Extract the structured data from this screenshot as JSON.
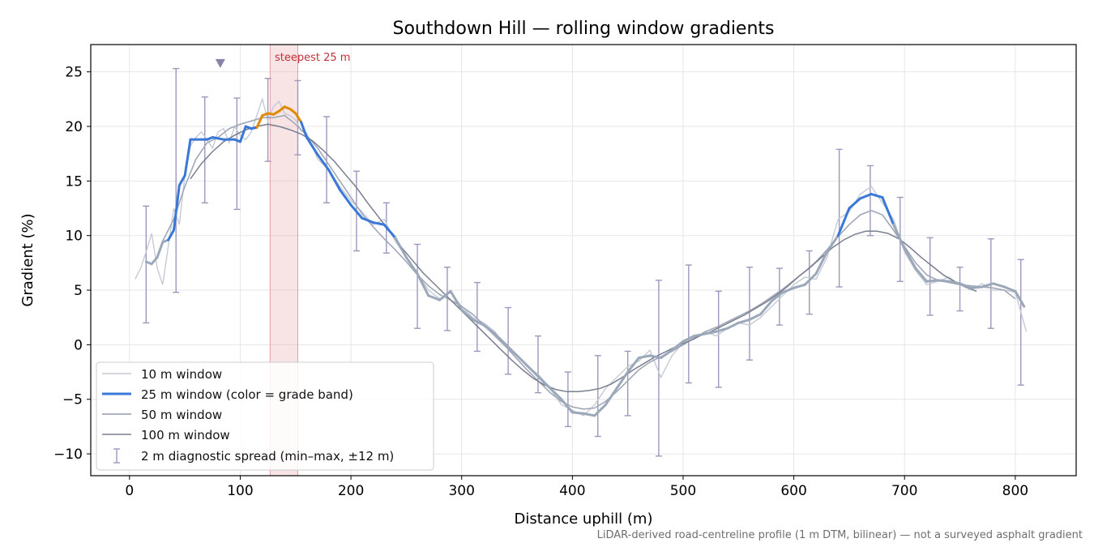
{
  "chart_data": {
    "type": "line",
    "title": "Southdown Hill — rolling window gradients",
    "xlabel": "Distance uphill (m)",
    "ylabel": "Gradient (%)",
    "xlim": [
      -35,
      855
    ],
    "ylim": [
      -12,
      27.5
    ],
    "xticks": [
      0,
      100,
      200,
      300,
      400,
      500,
      600,
      700,
      800
    ],
    "yticks": [
      -10,
      -5,
      0,
      5,
      10,
      15,
      20,
      25
    ],
    "grid": true,
    "legend_position": "lower-left",
    "footnote": "LiDAR-derived road-centreline profile (1 m DTM, bilinear) — not a surveyed asphalt gradient",
    "steepest_label": "steepest 25 m",
    "steepest_band": [
      127,
      152
    ],
    "peak_marker": {
      "x": 82,
      "y": 25.8
    },
    "grade_colors": {
      "moderate": "#9aa8ba",
      "steep": "#3a78d8",
      "steepest": "#e08a00"
    },
    "series": [
      {
        "name": "10 m window",
        "color": "#c5cad6",
        "x": [
          5,
          10,
          15,
          20,
          25,
          30,
          35,
          40,
          45,
          50,
          55,
          60,
          65,
          70,
          75,
          80,
          85,
          90,
          95,
          100,
          105,
          110,
          115,
          120,
          125,
          130,
          135,
          140,
          145,
          150,
          155,
          160,
          165,
          170,
          180,
          190,
          200,
          210,
          220,
          230,
          240,
          250,
          260,
          270,
          280,
          290,
          300,
          310,
          320,
          330,
          340,
          350,
          360,
          370,
          380,
          390,
          400,
          410,
          420,
          430,
          440,
          450,
          460,
          470,
          480,
          490,
          500,
          510,
          520,
          530,
          540,
          550,
          560,
          570,
          580,
          590,
          600,
          610,
          620,
          630,
          640,
          650,
          660,
          670,
          680,
          690,
          700,
          710,
          720,
          730,
          740,
          750,
          760,
          770,
          780,
          790,
          800,
          805,
          810
        ],
        "y": [
          6.0,
          7.0,
          8.5,
          10.2,
          7.0,
          5.5,
          9.0,
          12.5,
          11.0,
          15.5,
          18.2,
          19.0,
          19.5,
          18.8,
          18.0,
          19.5,
          19.8,
          18.5,
          20.0,
          19.2,
          18.8,
          19.5,
          21.0,
          22.5,
          20.5,
          21.8,
          22.3,
          21.2,
          21.0,
          20.6,
          19.6,
          19.4,
          18.2,
          17.0,
          16.0,
          14.5,
          13.2,
          12.2,
          11.0,
          11.5,
          9.5,
          8.0,
          6.5,
          5.0,
          4.2,
          4.8,
          3.5,
          2.5,
          2.0,
          1.2,
          -0.2,
          -1.0,
          -2.0,
          -2.8,
          -4.0,
          -5.5,
          -6.0,
          -6.5,
          -5.5,
          -4.0,
          -3.0,
          -2.0,
          -1.5,
          -0.5,
          -3.0,
          -1.0,
          0.2,
          0.5,
          1.2,
          0.8,
          1.5,
          2.0,
          1.8,
          2.5,
          3.5,
          4.5,
          5.5,
          6.2,
          6.0,
          8.0,
          11.5,
          12.2,
          13.8,
          14.5,
          13.0,
          11.5,
          8.5,
          6.8,
          5.5,
          5.8,
          6.2,
          5.5,
          5.0,
          5.6,
          5.0,
          5.0,
          4.8,
          3.0,
          1.2
        ]
      },
      {
        "name": "25 m window (color = grade band)",
        "color": "#3a78d8",
        "x": [
          15,
          20,
          25,
          30,
          35,
          40,
          45,
          50,
          55,
          60,
          65,
          70,
          75,
          80,
          85,
          90,
          95,
          100,
          105,
          110,
          115,
          120,
          125,
          130,
          135,
          140,
          145,
          150,
          155,
          160,
          165,
          170,
          180,
          190,
          200,
          210,
          220,
          230,
          240,
          250,
          260,
          270,
          280,
          290,
          300,
          310,
          320,
          330,
          340,
          350,
          360,
          370,
          380,
          390,
          400,
          410,
          420,
          430,
          440,
          450,
          460,
          470,
          480,
          490,
          500,
          510,
          520,
          530,
          540,
          550,
          560,
          570,
          580,
          590,
          600,
          610,
          620,
          630,
          640,
          650,
          660,
          670,
          680,
          690,
          700,
          710,
          720,
          730,
          740,
          750,
          760,
          770,
          780,
          790,
          800,
          808
        ],
        "y": [
          7.6,
          7.4,
          8.0,
          9.4,
          9.6,
          10.5,
          14.6,
          15.5,
          18.8,
          18.8,
          18.8,
          18.8,
          19.0,
          18.9,
          18.8,
          18.8,
          18.8,
          18.6,
          20.0,
          19.8,
          19.9,
          21.0,
          21.2,
          21.1,
          21.4,
          21.8,
          21.6,
          21.2,
          20.4,
          19.0,
          18.2,
          17.4,
          16.0,
          14.2,
          12.8,
          11.6,
          11.2,
          11.0,
          9.8,
          8.0,
          6.5,
          4.5,
          4.1,
          4.9,
          3.2,
          2.3,
          1.8,
          1.0,
          0.0,
          -1.0,
          -2.0,
          -3.0,
          -4.0,
          -5.0,
          -6.2,
          -6.3,
          -6.5,
          -5.5,
          -4.0,
          -2.5,
          -1.2,
          -1.0,
          -1.2,
          -0.5,
          0.3,
          0.8,
          1.0,
          1.2,
          1.5,
          2.0,
          2.3,
          2.8,
          4.0,
          4.8,
          5.2,
          5.5,
          6.5,
          8.5,
          10.0,
          12.5,
          13.4,
          13.8,
          13.5,
          11.0,
          8.8,
          7.0,
          5.8,
          5.9,
          5.8,
          5.6,
          5.2,
          5.3,
          5.6,
          5.3,
          4.9,
          3.5
        ]
      },
      {
        "name": "50 m window",
        "color": "#a0a7b8",
        "x": [
          30,
          40,
          50,
          60,
          70,
          80,
          90,
          100,
          110,
          120,
          130,
          140,
          150,
          160,
          170,
          180,
          190,
          200,
          210,
          220,
          230,
          240,
          250,
          260,
          270,
          280,
          290,
          300,
          310,
          320,
          330,
          340,
          350,
          360,
          370,
          380,
          390,
          400,
          410,
          420,
          430,
          440,
          450,
          460,
          470,
          480,
          490,
          500,
          510,
          520,
          530,
          540,
          550,
          560,
          570,
          580,
          590,
          600,
          610,
          620,
          630,
          640,
          650,
          660,
          670,
          680,
          690,
          700,
          710,
          720,
          730,
          740,
          750,
          760,
          770,
          780,
          790,
          800
        ],
        "y": [
          9.5,
          11.5,
          14.5,
          17.0,
          18.5,
          19.0,
          19.8,
          20.2,
          20.5,
          20.8,
          20.8,
          21.0,
          20.2,
          19.2,
          18.0,
          16.5,
          15.0,
          13.5,
          12.0,
          10.8,
          9.7,
          8.7,
          7.6,
          6.4,
          5.4,
          4.6,
          4.1,
          3.5,
          2.8,
          1.8,
          0.8,
          -0.2,
          -1.3,
          -2.4,
          -3.4,
          -4.4,
          -5.2,
          -5.7,
          -5.9,
          -5.8,
          -5.2,
          -4.3,
          -3.3,
          -2.3,
          -1.6,
          -1.1,
          -0.6,
          0.0,
          0.6,
          1.2,
          1.6,
          2.1,
          2.6,
          3.1,
          3.7,
          4.4,
          5.1,
          5.9,
          6.7,
          7.6,
          8.7,
          9.9,
          11.0,
          11.9,
          12.3,
          11.9,
          10.5,
          9.0,
          7.5,
          6.4,
          5.9,
          5.7,
          5.5,
          5.4,
          5.3,
          5.2,
          5.0,
          4.2
        ]
      },
      {
        "name": "100 m window",
        "color": "#7a7f8f",
        "x": [
          55,
          65,
          75,
          85,
          95,
          105,
          115,
          125,
          135,
          145,
          155,
          165,
          175,
          185,
          195,
          205,
          215,
          225,
          235,
          245,
          255,
          265,
          275,
          285,
          295,
          305,
          315,
          325,
          335,
          345,
          355,
          365,
          375,
          385,
          395,
          405,
          415,
          425,
          435,
          445,
          455,
          465,
          475,
          485,
          495,
          505,
          515,
          525,
          535,
          545,
          555,
          565,
          575,
          585,
          595,
          605,
          615,
          625,
          635,
          645,
          655,
          665,
          675,
          685,
          695,
          705,
          715,
          725,
          735,
          745,
          755,
          765
        ],
        "y": [
          15.2,
          16.6,
          17.7,
          18.6,
          19.2,
          19.7,
          20.0,
          20.2,
          20.0,
          19.7,
          19.3,
          18.7,
          17.8,
          16.8,
          15.6,
          14.4,
          13.0,
          11.7,
          10.4,
          9.0,
          7.8,
          6.6,
          5.6,
          4.6,
          3.6,
          2.6,
          1.6,
          0.6,
          -0.4,
          -1.4,
          -2.3,
          -3.1,
          -3.7,
          -4.1,
          -4.3,
          -4.3,
          -4.2,
          -4.0,
          -3.6,
          -3.0,
          -2.3,
          -1.7,
          -1.1,
          -0.6,
          -0.1,
          0.3,
          0.8,
          1.2,
          1.7,
          2.2,
          2.7,
          3.3,
          3.9,
          4.6,
          5.4,
          6.3,
          7.1,
          8.0,
          8.9,
          9.6,
          10.1,
          10.4,
          10.4,
          10.2,
          9.7,
          8.9,
          8.0,
          7.2,
          6.4,
          5.8,
          5.3,
          4.9
        ]
      },
      {
        "name": "2 m diagnostic spread (min–max, ±12 m)",
        "color": "#9d97bd",
        "x": [
          15,
          42,
          68,
          97,
          125,
          152,
          178,
          205,
          232,
          260,
          287,
          314,
          342,
          369,
          396,
          423,
          450,
          478,
          505,
          532,
          560,
          587,
          614,
          641,
          669,
          696,
          723,
          750,
          778,
          805
        ],
        "ymin": [
          2.0,
          4.8,
          13.0,
          12.4,
          16.8,
          17.4,
          13.0,
          8.6,
          8.4,
          1.5,
          1.3,
          -0.6,
          -2.7,
          -4.4,
          -7.5,
          -8.4,
          -6.5,
          -10.2,
          -3.5,
          -3.9,
          -1.4,
          1.8,
          2.8,
          5.3,
          10.0,
          5.8,
          2.7,
          3.1,
          1.5,
          -3.7
        ],
        "ymax": [
          12.7,
          25.3,
          22.7,
          22.6,
          24.4,
          24.2,
          20.9,
          15.9,
          13.0,
          9.2,
          7.1,
          5.7,
          3.4,
          0.8,
          -2.5,
          -1.0,
          -0.6,
          5.9,
          7.3,
          4.9,
          7.1,
          7.0,
          8.6,
          17.9,
          16.4,
          13.5,
          9.8,
          7.1,
          9.7,
          7.8
        ]
      }
    ]
  }
}
